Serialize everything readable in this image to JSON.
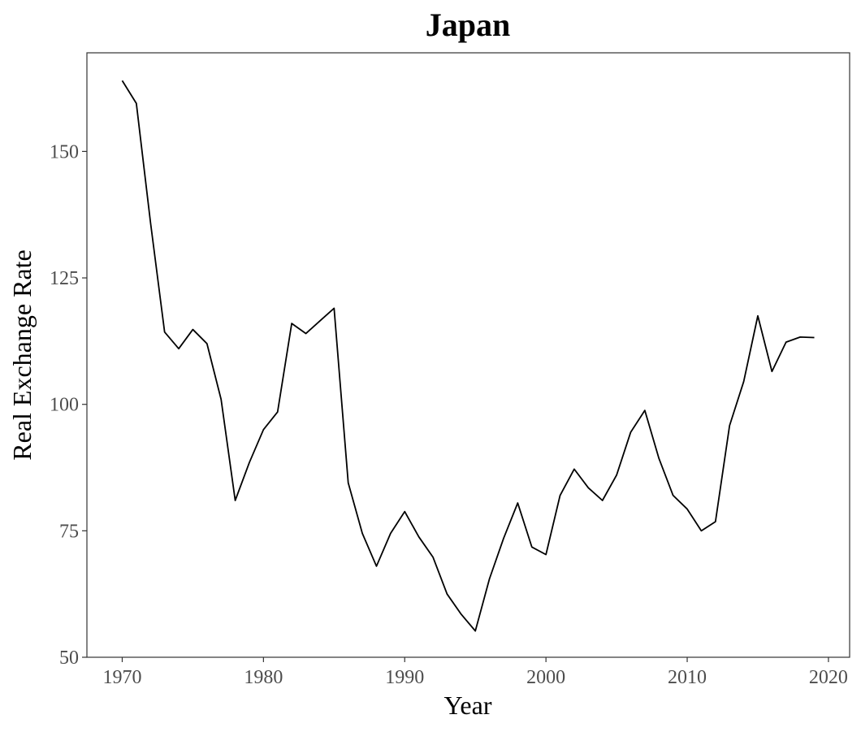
{
  "chart_data": {
    "type": "line",
    "title": "Japan",
    "xlabel": "Year",
    "ylabel": "Real Exchange Rate",
    "xlim": [
      1967.5,
      2021.5
    ],
    "ylim": [
      50,
      169.5
    ],
    "x_ticks": [
      1970,
      1980,
      1990,
      2000,
      2010,
      2020
    ],
    "y_ticks": [
      50,
      75,
      100,
      125,
      150
    ],
    "grid": false,
    "legend": "none",
    "series": [
      {
        "color": "#000000",
        "x": [
          1970,
          1971,
          1972,
          1973,
          1974,
          1975,
          1976,
          1977,
          1978,
          1979,
          1980,
          1981,
          1982,
          1983,
          1984,
          1985,
          1986,
          1987,
          1988,
          1989,
          1990,
          1991,
          1992,
          1993,
          1994,
          1995,
          1996,
          1997,
          1998,
          1999,
          2000,
          2001,
          2002,
          2003,
          2004,
          2005,
          2006,
          2007,
          2008,
          2009,
          2010,
          2011,
          2012,
          2013,
          2014,
          2015,
          2016,
          2017,
          2018,
          2019
        ],
        "y": [
          164.0,
          159.5,
          136.0,
          114.3,
          111.0,
          114.8,
          112.0,
          101.0,
          81.0,
          88.5,
          95.0,
          98.5,
          116.0,
          114.0,
          116.5,
          119.0,
          84.5,
          74.5,
          68.0,
          74.5,
          78.8,
          73.8,
          69.8,
          62.5,
          58.5,
          55.2,
          65.5,
          73.5,
          80.5,
          71.8,
          70.3,
          82.0,
          87.2,
          83.5,
          81.0,
          86.0,
          94.5,
          98.8,
          89.3,
          82.0,
          79.3,
          75.0,
          76.8,
          95.8,
          104.5,
          117.5,
          106.5,
          112.3,
          113.3,
          113.2
        ]
      }
    ]
  }
}
